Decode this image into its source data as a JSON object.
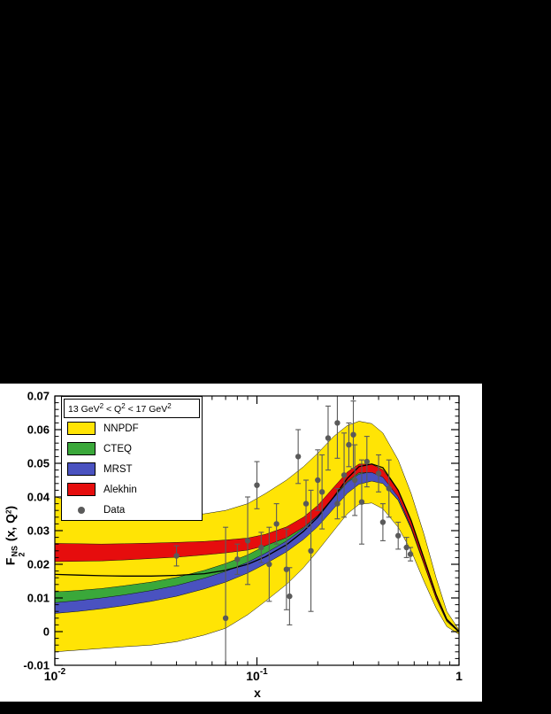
{
  "page": {
    "background": "#000000",
    "canvas_background": "#ffffff"
  },
  "chart_data": {
    "type": "area",
    "x_scale": "log",
    "xlim": [
      0.01,
      1
    ],
    "ylim": [
      -0.01,
      0.07
    ],
    "xlabel": "x",
    "ylabel": "F2NS (x, Q2)",
    "ylabel_parts": {
      "base": "F",
      "sup": "NS",
      "sub": "2",
      "mid": " (x, Q",
      "exp": "2",
      "end": ")"
    },
    "grid": false,
    "x_ticks": [
      {
        "v": 0.01,
        "base": "10",
        "exp": "-2"
      },
      {
        "v": 0.1,
        "base": "10",
        "exp": "-1"
      },
      {
        "v": 1,
        "base": "1",
        "exp": ""
      }
    ],
    "y_ticks": [
      {
        "v": -0.01,
        "label": "-0.01"
      },
      {
        "v": 0,
        "label": "0"
      },
      {
        "v": 0.01,
        "label": "0.01"
      },
      {
        "v": 0.02,
        "label": "0.02"
      },
      {
        "v": 0.03,
        "label": "0.03"
      },
      {
        "v": 0.04,
        "label": "0.04"
      },
      {
        "v": 0.05,
        "label": "0.05"
      },
      {
        "v": 0.06,
        "label": "0.06"
      },
      {
        "v": 0.07,
        "label": "0.07"
      }
    ],
    "legend": {
      "position": "top-left",
      "header_parts": {
        "t1": "13 GeV",
        "e1": "2",
        "t2": " < Q",
        "e2": "2",
        "t3": " < 17 GeV",
        "e3": "2"
      },
      "entries": [
        {
          "label": "NNPDF",
          "color": "#ffe405",
          "type": "band"
        },
        {
          "label": "CTEQ",
          "color": "#3aa83a",
          "type": "band"
        },
        {
          "label": "MRST",
          "color": "#4a52c0",
          "type": "band"
        },
        {
          "label": "Alekhin",
          "color": "#e60d0d",
          "type": "band"
        },
        {
          "label": "Data",
          "color": "#5a5a5a",
          "type": "marker"
        }
      ]
    },
    "x": [
      0.01,
      0.013,
      0.017,
      0.022,
      0.03,
      0.04,
      0.055,
      0.07,
      0.09,
      0.11,
      0.14,
      0.17,
      0.2,
      0.24,
      0.28,
      0.32,
      0.37,
      0.42,
      0.5,
      0.58,
      0.67,
      0.77,
      0.87,
      1.0
    ],
    "bands": [
      {
        "name": "NNPDF",
        "color": "#ffe405",
        "hi": [
          0.04,
          0.0385,
          0.037,
          0.036,
          0.035,
          0.0345,
          0.035,
          0.036,
          0.038,
          0.041,
          0.045,
          0.049,
          0.053,
          0.058,
          0.0612,
          0.0625,
          0.0618,
          0.059,
          0.051,
          0.041,
          0.029,
          0.016,
          0.006,
          0.0005
        ],
        "lo": [
          -0.006,
          -0.0055,
          -0.005,
          -0.0045,
          -0.004,
          -0.003,
          -0.001,
          0.001,
          0.005,
          0.009,
          0.014,
          0.019,
          0.024,
          0.03,
          0.035,
          0.0378,
          0.0382,
          0.0365,
          0.031,
          0.024,
          0.015,
          0.007,
          0.0015,
          -0.0008
        ]
      },
      {
        "name": "CTEQ",
        "color": "#3aa83a",
        "hi": [
          0.0118,
          0.0122,
          0.0128,
          0.0136,
          0.0147,
          0.0161,
          0.0182,
          0.0202,
          0.0228,
          0.0255,
          0.029,
          0.0327,
          0.0363,
          0.0416,
          0.0458,
          0.0481,
          0.0486,
          0.0475,
          0.042,
          0.0331,
          0.022,
          0.0112,
          0.0038,
          0.0002
        ],
        "lo": [
          0.0062,
          0.0068,
          0.0076,
          0.0084,
          0.0097,
          0.0111,
          0.0134,
          0.0154,
          0.0182,
          0.0209,
          0.0246,
          0.0283,
          0.0321,
          0.0374,
          0.0418,
          0.0443,
          0.045,
          0.0441,
          0.039,
          0.0305,
          0.02,
          0.0098,
          0.003,
          -0.0002
        ]
      },
      {
        "name": "MRST",
        "color": "#4a52c0",
        "hi": [
          0.0086,
          0.0092,
          0.01,
          0.0109,
          0.0122,
          0.0137,
          0.0159,
          0.0179,
          0.0206,
          0.0233,
          0.0269,
          0.0306,
          0.0344,
          0.0398,
          0.0443,
          0.0468,
          0.0475,
          0.0466,
          0.0413,
          0.0325,
          0.0215,
          0.0108,
          0.0036,
          0.0001
        ],
        "lo": [
          0.0054,
          0.006,
          0.0068,
          0.0077,
          0.009,
          0.0105,
          0.0127,
          0.0147,
          0.0174,
          0.0201,
          0.0237,
          0.0274,
          0.0312,
          0.0366,
          0.0411,
          0.0438,
          0.0447,
          0.044,
          0.0391,
          0.0307,
          0.0203,
          0.01,
          0.0032,
          -0.0001
        ]
      },
      {
        "name": "Alekhin",
        "color": "#e60d0d",
        "hi": [
          0.0262,
          0.0261,
          0.026,
          0.0261,
          0.0263,
          0.0265,
          0.0268,
          0.0272,
          0.0278,
          0.0289,
          0.0311,
          0.034,
          0.0375,
          0.0429,
          0.0474,
          0.0498,
          0.0497,
          0.0481,
          0.042,
          0.0329,
          0.0217,
          0.011,
          0.0038,
          0.0002
        ],
        "lo": [
          0.0208,
          0.0209,
          0.021,
          0.0213,
          0.0217,
          0.0221,
          0.0228,
          0.0234,
          0.0242,
          0.0255,
          0.0279,
          0.031,
          0.0345,
          0.0401,
          0.0446,
          0.0472,
          0.0473,
          0.0459,
          0.04,
          0.0311,
          0.0203,
          0.01,
          0.0032,
          -0.0002
        ]
      }
    ],
    "central_line": {
      "name": "NNPDF central",
      "color": "#000000",
      "values": [
        0.017,
        0.0168,
        0.0166,
        0.0165,
        0.0165,
        0.0167,
        0.0172,
        0.0182,
        0.02,
        0.0222,
        0.0258,
        0.0298,
        0.034,
        0.04,
        0.0455,
        0.049,
        0.0498,
        0.0487,
        0.042,
        0.033,
        0.0218,
        0.011,
        0.0036,
        0.0
      ]
    },
    "data_points": [
      [
        0.04,
        0.0225,
        0.003
      ],
      [
        0.07,
        0.004,
        0.027
      ],
      [
        0.08,
        0.0215,
        0.0045
      ],
      [
        0.09,
        0.027,
        0.013
      ],
      [
        0.1,
        0.0435,
        0.007
      ],
      [
        0.105,
        0.025,
        0.0045
      ],
      [
        0.115,
        0.02,
        0.011
      ],
      [
        0.125,
        0.032,
        0.006
      ],
      [
        0.14,
        0.0185,
        0.012
      ],
      [
        0.145,
        0.0105,
        0.0085
      ],
      [
        0.16,
        0.052,
        0.008
      ],
      [
        0.175,
        0.038,
        0.007
      ],
      [
        0.185,
        0.024,
        0.018
      ],
      [
        0.2,
        0.045,
        0.009
      ],
      [
        0.21,
        0.0415,
        0.011
      ],
      [
        0.225,
        0.0575,
        0.0095
      ],
      [
        0.25,
        0.062,
        0.0105
      ],
      [
        0.25,
        0.038,
        0.0045
      ],
      [
        0.27,
        0.0465,
        0.0125
      ],
      [
        0.285,
        0.0555,
        0.0065
      ],
      [
        0.3,
        0.0585,
        0.01
      ],
      [
        0.305,
        0.045,
        0.0105
      ],
      [
        0.33,
        0.0385,
        0.0125
      ],
      [
        0.35,
        0.0505,
        0.0075
      ],
      [
        0.4,
        0.047,
        0.0055
      ],
      [
        0.42,
        0.0325,
        0.0055
      ],
      [
        0.45,
        0.0425,
        0.0085
      ],
      [
        0.5,
        0.0285,
        0.004
      ],
      [
        0.55,
        0.025,
        0.003
      ],
      [
        0.575,
        0.023,
        0.002
      ]
    ],
    "data_style": {
      "color": "#5a5a5a",
      "marker": "filled-circle"
    }
  }
}
